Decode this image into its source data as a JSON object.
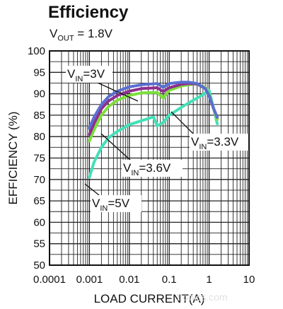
{
  "title": "Efficiency",
  "subtitle": {
    "main": "V",
    "sub": "OUT",
    "rest": " = 1.8V"
  },
  "watermark": "tronics.com",
  "chart_data": {
    "type": "line",
    "xlabel": "LOAD CURRENT(A)",
    "ylabel": "EFFICIENCY (%)",
    "xscale": "log",
    "xlim": [
      0.0001,
      10
    ],
    "ylim": [
      50,
      100
    ],
    "xticks": [
      "0.0001",
      "0.001",
      "0.01",
      "0.1",
      "1",
      "10"
    ],
    "yticks": [
      "50",
      "55",
      "60",
      "65",
      "70",
      "75",
      "80",
      "85",
      "90",
      "95",
      "100"
    ],
    "grid": true,
    "series": [
      {
        "name": "VIN=3V",
        "color": "#5a6fd0",
        "x": [
          0.001,
          0.0013,
          0.002,
          0.003,
          0.005,
          0.01,
          0.02,
          0.05,
          0.07,
          0.1,
          0.2,
          0.3,
          0.5,
          0.8,
          1.0,
          1.3,
          1.6
        ],
        "y": [
          82,
          84.5,
          87.5,
          89.3,
          90.6,
          91.6,
          92.1,
          92.4,
          91.5,
          92.4,
          92.7,
          92.7,
          92.4,
          91.2,
          89.5,
          86.5,
          84.5
        ]
      },
      {
        "name": "VIN=3.6V",
        "color": "#8e2f8e",
        "x": [
          0.001,
          0.0013,
          0.002,
          0.003,
          0.005,
          0.01,
          0.02,
          0.05,
          0.07,
          0.1,
          0.2,
          0.3,
          0.5,
          0.8,
          1.0,
          1.3,
          1.6
        ],
        "y": [
          80.5,
          83,
          86.5,
          88.3,
          89.6,
          90.6,
          91.2,
          91.4,
          90.5,
          91.4,
          92.2,
          92.4,
          92.3,
          91.2,
          89.5,
          86.5,
          84.5
        ]
      },
      {
        "name": "VIN=3.3V",
        "color": "#7be03a",
        "x": [
          0.001,
          0.0013,
          0.002,
          0.003,
          0.005,
          0.01,
          0.02,
          0.05,
          0.07,
          0.1,
          0.2,
          0.3,
          0.5,
          0.8,
          1.0,
          1.3,
          1.6
        ],
        "y": [
          79,
          81.5,
          85,
          87,
          88.5,
          89.6,
          90.2,
          90.3,
          89,
          90.8,
          91.8,
          92.1,
          92.3,
          91.4,
          89.8,
          86.5,
          84
        ]
      },
      {
        "name": "VIN=5V",
        "color": "#44e0b8",
        "x": [
          0.001,
          0.0013,
          0.002,
          0.003,
          0.005,
          0.01,
          0.02,
          0.04,
          0.05,
          0.07,
          0.1,
          0.2,
          0.3,
          0.5,
          0.7,
          1.0,
          1.3,
          1.6
        ],
        "y": [
          70.5,
          74,
          77.5,
          79.7,
          81.2,
          82.8,
          83.7,
          84.6,
          82.5,
          83.3,
          85,
          86.8,
          87.8,
          89,
          89.8,
          90.8,
          86.5,
          83
        ]
      }
    ],
    "annotations": [
      {
        "main": "V",
        "sub": "IN",
        "rest": "=3V"
      },
      {
        "main": "V",
        "sub": "IN",
        "rest": "=3.3V"
      },
      {
        "main": "V",
        "sub": "IN",
        "rest": "=3.6V"
      },
      {
        "main": "V",
        "sub": "IN",
        "rest": "=5V"
      }
    ]
  }
}
